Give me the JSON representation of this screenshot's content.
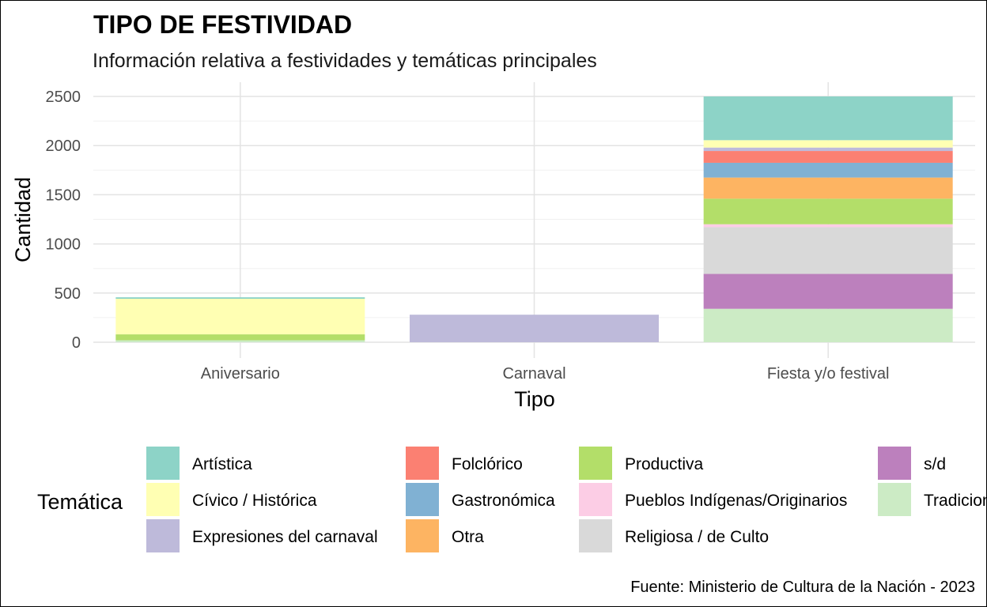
{
  "chart_data": {
    "type": "bar",
    "stacked": true,
    "title": "TIPO DE FESTIVIDAD",
    "subtitle": "Información relativa a festividades y temáticas principales",
    "xlabel": "Tipo",
    "ylabel": "Cantidad",
    "caption": "Fuente: Ministerio de Cultura de la Nación - 2023",
    "categories": [
      "Aniversario",
      "Carnaval",
      "Fiesta y/o festival"
    ],
    "ylim": [
      0,
      2600
    ],
    "yticks": [
      0,
      500,
      1000,
      1500,
      2000,
      2500
    ],
    "grid": true,
    "legend_position": "bottom",
    "legend_title": "Temática",
    "series": [
      {
        "name": "Tradicional",
        "color": "#CCEBC5",
        "values": [
          20,
          0,
          340
        ]
      },
      {
        "name": "s/d",
        "color": "#BC80BD",
        "values": [
          0,
          0,
          355
        ]
      },
      {
        "name": "Religiosa / de Culto",
        "color": "#D9D9D9",
        "values": [
          0,
          0,
          475
        ]
      },
      {
        "name": "Pueblos Indígenas/Originarios",
        "color": "#FCCDE5",
        "values": [
          0,
          0,
          30
        ]
      },
      {
        "name": "Productiva",
        "color": "#B3DE69",
        "values": [
          60,
          0,
          260
        ]
      },
      {
        "name": "Otra",
        "color": "#FDB462",
        "values": [
          0,
          0,
          215
        ]
      },
      {
        "name": "Gastronómica",
        "color": "#80B1D3",
        "values": [
          0,
          0,
          150
        ]
      },
      {
        "name": "Folclórico",
        "color": "#FB8072",
        "values": [
          0,
          0,
          120
        ]
      },
      {
        "name": "Expresiones del carnaval",
        "color": "#BEBADA",
        "values": [
          0,
          280,
          35
        ]
      },
      {
        "name": "Cívico / Histórica",
        "color": "#FFFFB3",
        "values": [
          362,
          0,
          75
        ]
      },
      {
        "name": "Artística",
        "color": "#8DD3C7",
        "values": [
          15,
          0,
          445
        ]
      }
    ],
    "legend_order": [
      "Artística",
      "Cívico / Histórica",
      "Expresiones del carnaval",
      "Folclórico",
      "Gastronómica",
      "Otra",
      "Productiva",
      "Pueblos Indígenas/Originarios",
      "Religiosa / de Culto",
      "s/d",
      "Tradicional"
    ]
  }
}
